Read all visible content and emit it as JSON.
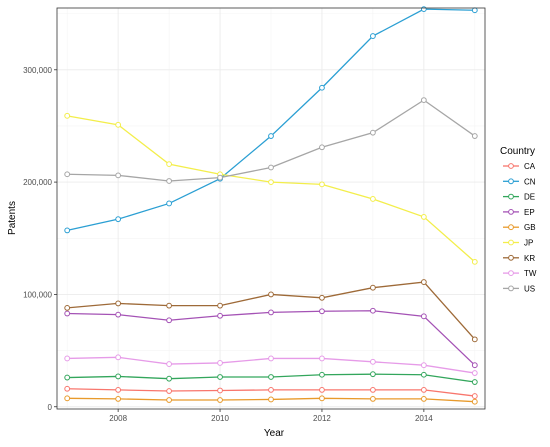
{
  "chart_data": {
    "type": "line",
    "xlabel": "Year",
    "ylabel": "Patents",
    "xlim": [
      2006.8,
      2015.2
    ],
    "ylim": [
      -2000,
      355000
    ],
    "x_ticks": [
      2008,
      2010,
      2012,
      2014
    ],
    "x_tick_labels": [
      "2008",
      "2010",
      "2012",
      "2014"
    ],
    "y_ticks": [
      0,
      100000,
      200000,
      300000
    ],
    "y_tick_labels": [
      "0",
      "100,000",
      "200,000",
      "300,000"
    ],
    "grid": true,
    "legend": {
      "title": "Country",
      "position": "right"
    },
    "x": [
      2007,
      2008,
      2009,
      2010,
      2011,
      2012,
      2013,
      2014,
      2015
    ],
    "series": [
      {
        "name": "CA",
        "color": "#F8766D",
        "values": [
          16000,
          15000,
          14000,
          14500,
          15000,
          15000,
          15000,
          15000,
          9500
        ]
      },
      {
        "name": "CN",
        "color": "#2B9FD3",
        "values": [
          157000,
          167000,
          181000,
          203000,
          241000,
          284000,
          330000,
          354000,
          353000
        ]
      },
      {
        "name": "DE",
        "color": "#33A65C",
        "values": [
          26000,
          27000,
          25000,
          26500,
          26500,
          28500,
          29000,
          28500,
          22000
        ]
      },
      {
        "name": "EP",
        "color": "#A452B5",
        "values": [
          83000,
          82000,
          77000,
          81000,
          84000,
          85000,
          85500,
          80500,
          37000
        ]
      },
      {
        "name": "GB",
        "color": "#E89A2B",
        "values": [
          7500,
          7000,
          6000,
          6000,
          6500,
          7500,
          7000,
          7000,
          4500
        ]
      },
      {
        "name": "JP",
        "color": "#F3EE4B",
        "values": [
          259000,
          251000,
          216000,
          207000,
          200000,
          198000,
          185000,
          169000,
          129000
        ]
      },
      {
        "name": "KR",
        "color": "#9E6A38",
        "values": [
          88000,
          92000,
          90000,
          90000,
          100000,
          97000,
          106000,
          111000,
          60000
        ]
      },
      {
        "name": "TW",
        "color": "#E69BE8",
        "values": [
          43000,
          44000,
          38000,
          39000,
          43000,
          43000,
          40000,
          37000,
          30000
        ]
      },
      {
        "name": "US",
        "color": "#A6A6A6",
        "values": [
          207000,
          206000,
          201000,
          204000,
          213000,
          231000,
          244000,
          273000,
          241000
        ]
      }
    ]
  }
}
